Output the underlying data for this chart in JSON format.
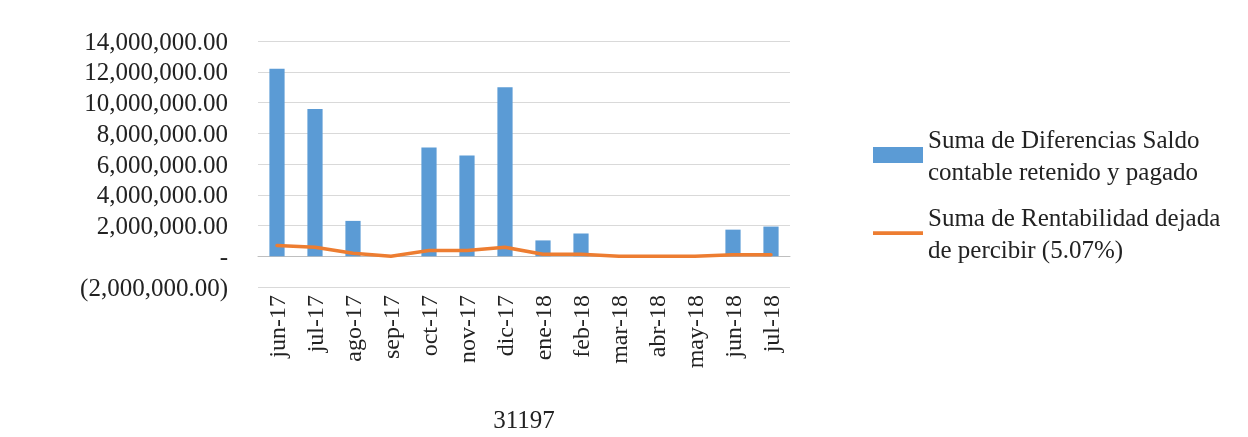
{
  "chart_data": {
    "type": "bar",
    "xlabel": "31197",
    "categories": [
      "jun-17",
      "jul-17",
      "ago-17",
      "sep-17",
      "oct-17",
      "nov-17",
      "dic-17",
      "ene-18",
      "feb-18",
      "mar-18",
      "abr-18",
      "may-18",
      "jun-18",
      "jul-18"
    ],
    "series": [
      {
        "name": "Suma de Diferencias Saldo contable retenido y pagado",
        "color": "#5b9bd5",
        "values": [
          12200000,
          9570000,
          2300000,
          0,
          7070000,
          6550000,
          11000000,
          1030000,
          1480000,
          0,
          0,
          0,
          1730000,
          1930000
        ]
      },
      {
        "name": "Suma de Rentabilidad dejada de percibir (5.07%)",
        "type": "line",
        "color": "#ed7d31",
        "marker": "none",
        "line_style": "solid",
        "values": [
          700000,
          580000,
          200000,
          0,
          380000,
          380000,
          580000,
          130000,
          130000,
          0,
          0,
          0,
          100000,
          100000
        ]
      }
    ],
    "ylim": [
      -2000000,
      14000000
    ],
    "yticks": [
      {
        "value": -2000000,
        "label": "(2,000,000.00)"
      },
      {
        "value": 0,
        "label": "-"
      },
      {
        "value": 2000000,
        "label": "2,000,000.00"
      },
      {
        "value": 4000000,
        "label": "4,000,000.00"
      },
      {
        "value": 6000000,
        "label": "6,000,000.00"
      },
      {
        "value": 8000000,
        "label": "8,000,000.00"
      },
      {
        "value": 10000000,
        "label": "10,000,000.00"
      },
      {
        "value": 12000000,
        "label": "12,000,000.00"
      },
      {
        "value": 14000000,
        "label": "14,000,000.00"
      }
    ],
    "grid": "y",
    "legend": "right"
  }
}
